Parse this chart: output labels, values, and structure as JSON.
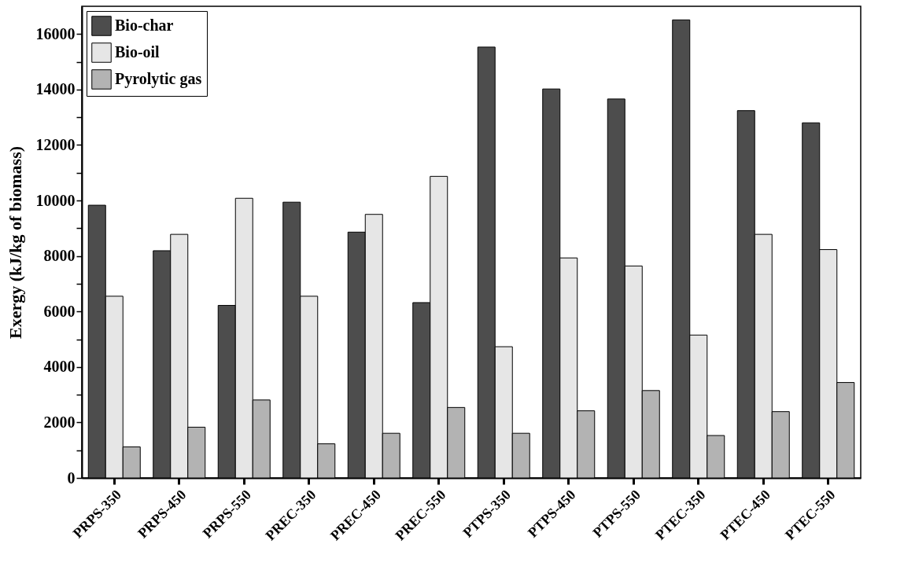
{
  "chart_data": {
    "type": "bar",
    "ylabel": "Exergy (kJ/kg of biomass)",
    "categories": [
      "PRPS-350",
      "PRPS-450",
      "PRPS-550",
      "PREC-350",
      "PREC-450",
      "PREC-550",
      "PTPS-350",
      "PTPS-450",
      "PTPS-550",
      "PTEC-350",
      "PTEC-450",
      "PTEC-550"
    ],
    "series": [
      {
        "name": "Bio-char",
        "color": "#4d4d4d",
        "values": [
          9830,
          8190,
          6220,
          9940,
          8860,
          6320,
          15530,
          14020,
          13660,
          16510,
          13240,
          12800
        ]
      },
      {
        "name": "Bio-oil",
        "color": "#e6e6e6",
        "values": [
          6550,
          8780,
          10080,
          6550,
          9500,
          10870,
          4730,
          7930,
          7640,
          5150,
          8780,
          8230
        ]
      },
      {
        "name": "Pyrolytic gas",
        "color": "#b3b3b3",
        "values": [
          1120,
          1830,
          2810,
          1230,
          1610,
          2540,
          1610,
          2420,
          3150,
          1530,
          2390,
          3440
        ]
      }
    ],
    "ylim": [
      0,
      17000
    ],
    "yticks": [
      0,
      {
        "value": 1000,
        "label": null
      },
      2000,
      {
        "value": 3000,
        "label": null
      },
      4000,
      {
        "value": 5000,
        "label": null
      },
      6000,
      {
        "value": 7000,
        "label": null
      },
      8000,
      {
        "value": 9000,
        "label": null
      },
      10000,
      {
        "value": 11000,
        "label": null
      },
      12000,
      {
        "value": 13000,
        "label": null
      },
      14000,
      {
        "value": 15000,
        "label": null
      },
      16000
    ],
    "legend": "top left",
    "grid": false
  }
}
